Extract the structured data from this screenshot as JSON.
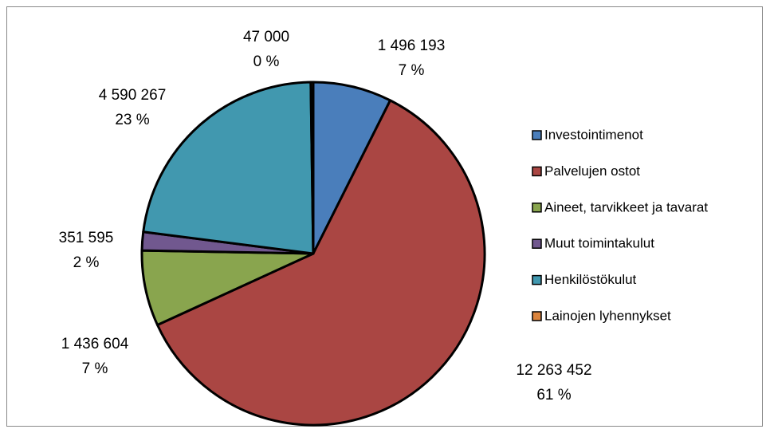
{
  "chart_data": {
    "type": "pie",
    "categories": [
      "Investointimenot",
      "Palvelujen ostot",
      "Aineet, tarvikkeet ja tavarat",
      "Muut toimintakulut",
      "Henkilöstökulut",
      "Lainojen lyhennykset"
    ],
    "values": [
      1496193,
      12263452,
      1436604,
      351595,
      4590267,
      47000
    ],
    "value_labels": [
      "1 496 193",
      "12 263 452",
      "1 436 604",
      "351 595",
      "4 590 267",
      "47 000"
    ],
    "percent_labels": [
      "7 %",
      "61 %",
      "7 %",
      "2 %",
      "23 %",
      "0 %"
    ],
    "colors": [
      "#4a7ebb",
      "#aa4643",
      "#89a54e",
      "#71588f",
      "#4198af",
      "#db843d"
    ],
    "legend": "right"
  }
}
